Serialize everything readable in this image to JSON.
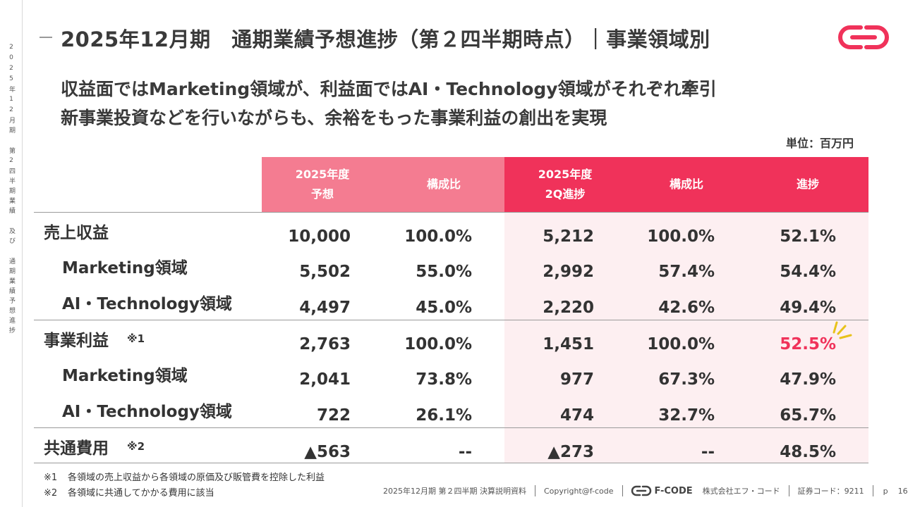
{
  "side_text": "2025年12月期 第2四半期業績 及び 通期業績予想進捗",
  "header": {
    "title": "2025年12月期　通期業績予想進捗（第２四半期時点）｜事業領域別"
  },
  "headline": {
    "line1": "収益面ではMarketing領域が、利益面ではAI・Technology領域がそれぞれ牽引",
    "line2": "新事業投資などを行いながらも、余裕をもった事業利益の創出を実現"
  },
  "unit": "単位：百万円",
  "table": {
    "headers": [
      "2025年度\n予想",
      "構成比",
      "2025年度\n2Q進捗",
      "構成比",
      "進捗"
    ],
    "rows": [
      {
        "label": "売上収益",
        "note": "",
        "values": [
          "10,000",
          "100.0%",
          "5,212",
          "100.0%",
          "52.1%"
        ]
      },
      {
        "label": "Marketing領域",
        "note": "",
        "values": [
          "5,502",
          "55.0%",
          "2,992",
          "57.4%",
          "54.4%"
        ]
      },
      {
        "label": "AI・Technology領域",
        "note": "",
        "values": [
          "4,497",
          "45.0%",
          "2,220",
          "42.6%",
          "49.4%"
        ]
      },
      {
        "label": "事業利益",
        "note": "※1",
        "values": [
          "2,763",
          "100.0%",
          "1,451",
          "100.0%",
          "52.5%"
        ]
      },
      {
        "label": "Marketing領域",
        "note": "",
        "values": [
          "2,041",
          "73.8%",
          "977",
          "67.3%",
          "47.9%"
        ]
      },
      {
        "label": "AI・Technology領域",
        "note": "",
        "values": [
          "722",
          "26.1%",
          "474",
          "32.7%",
          "65.7%"
        ]
      },
      {
        "label": "共通費用",
        "note": "※2",
        "values": [
          "▲563",
          "--",
          "▲273",
          "--",
          "48.5%"
        ]
      }
    ]
  },
  "footnotes": [
    {
      "mark": "※1",
      "text": "各領域の売上収益から各領域の原価及び販管費を控除した利益"
    },
    {
      "mark": "※2",
      "text": "各領域に共通してかかる費用に該当"
    }
  ],
  "footer": {
    "doc": "2025年12月期 第２四半期 決算説明資料",
    "copyright": "Copyright@f-code",
    "brand": "F-CODE",
    "company": "株式会社エフ・コード",
    "code": "証券コード：9211",
    "page_label": "p",
    "page_number": "16"
  },
  "colors": {
    "accent": "#f0325a",
    "accent_light": "#f47c91",
    "shade": "#fdeff1",
    "highlight_sparkle": "#e8c21a"
  }
}
